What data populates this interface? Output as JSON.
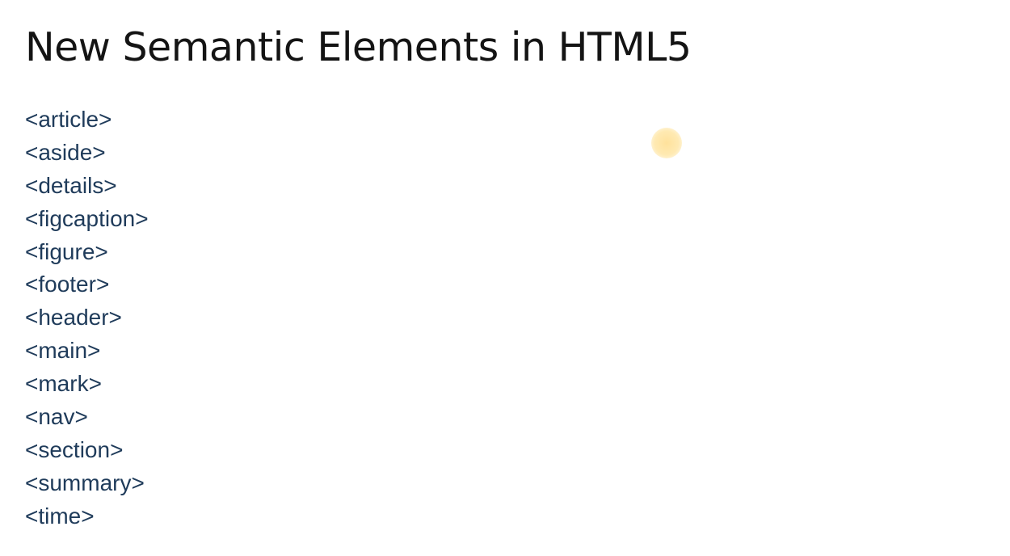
{
  "slide": {
    "title": "New Semantic Elements in HTML5",
    "elements": [
      "<article>",
      "<aside>",
      "<details>",
      "<figcaption>",
      "<figure>",
      "<footer>",
      "<header>",
      "<main>",
      "<mark>",
      "<nav>",
      "<section>",
      "<summary>",
      "<time>"
    ]
  },
  "colors": {
    "title": "#141414",
    "list_text": "#1f3b5a",
    "cursor_highlight": "#ffe096",
    "background": "#ffffff"
  }
}
